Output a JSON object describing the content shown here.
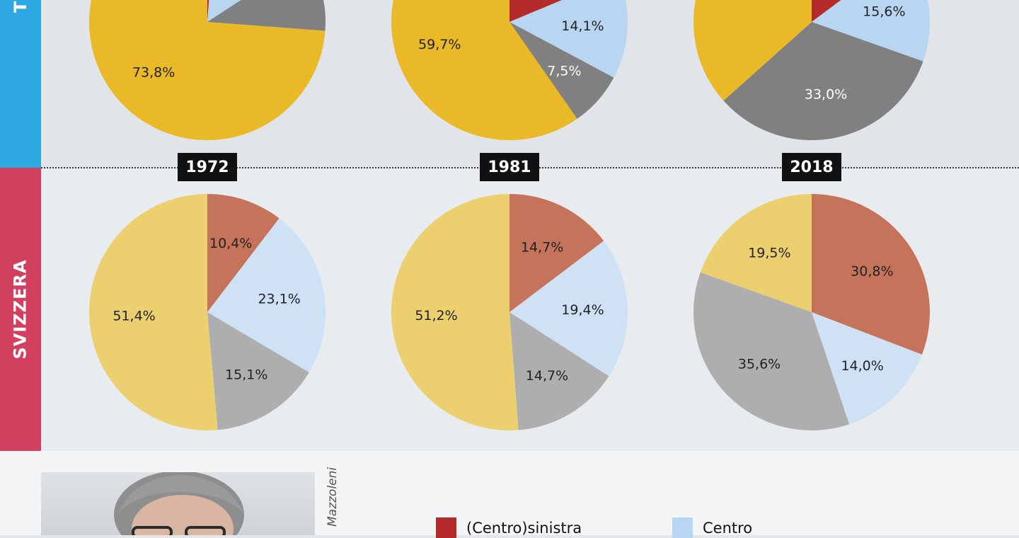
{
  "sections": {
    "ticino": "TICINO",
    "svizzera": "SVIZZERA"
  },
  "years": [
    "1972",
    "1981",
    "2018"
  ],
  "legend": {
    "items": [
      {
        "label": "(Centro)sinistra",
        "color": "#b52a2a"
      },
      {
        "label": "Centro",
        "color": "#b8d6f2"
      }
    ]
  },
  "photo_credit": "Mazzoleni",
  "colors": {
    "ticino": {
      "left": "#b52a2a",
      "center": "#b8d6f2",
      "right": "#808080",
      "other": "#e9b928"
    },
    "svizzera": {
      "left": "#c5735a",
      "center": "#cfe1f4",
      "right": "#aeaeae",
      "other": "#ecd070"
    }
  },
  "chart_data": [
    {
      "type": "pie",
      "region": "Ticino",
      "year": "1972",
      "slices": [
        {
          "key": "left",
          "value": 1.2,
          "label": ""
        },
        {
          "key": "center",
          "value": 14.6,
          "label": ""
        },
        {
          "key": "right",
          "value": 10.4,
          "label": ""
        },
        {
          "key": "other",
          "value": 73.8,
          "label": "73,8%"
        }
      ]
    },
    {
      "type": "pie",
      "region": "Ticino",
      "year": "1981",
      "slices": [
        {
          "key": "left",
          "value": 18.7,
          "label": ""
        },
        {
          "key": "center",
          "value": 14.1,
          "label": "14,1%"
        },
        {
          "key": "right",
          "value": 7.5,
          "label": "7,5%"
        },
        {
          "key": "other",
          "value": 59.7,
          "label": "59,7%"
        }
      ]
    },
    {
      "type": "pie",
      "region": "Ticino",
      "year": "2018",
      "slices": [
        {
          "key": "left",
          "value": 14.8,
          "label": ""
        },
        {
          "key": "center",
          "value": 15.6,
          "label": "15,6%"
        },
        {
          "key": "right",
          "value": 33.0,
          "label": "33,0%"
        },
        {
          "key": "other",
          "value": 36.6,
          "label": ""
        }
      ]
    },
    {
      "type": "pie",
      "region": "Svizzera",
      "year": "1972",
      "slices": [
        {
          "key": "left",
          "value": 10.4,
          "label": "10,4%"
        },
        {
          "key": "center",
          "value": 23.1,
          "label": "23,1%"
        },
        {
          "key": "right",
          "value": 15.1,
          "label": "15,1%"
        },
        {
          "key": "other",
          "value": 51.4,
          "label": "51,4%"
        }
      ]
    },
    {
      "type": "pie",
      "region": "Svizzera",
      "year": "1981",
      "slices": [
        {
          "key": "left",
          "value": 14.7,
          "label": "14,7%"
        },
        {
          "key": "center",
          "value": 19.4,
          "label": "19,4%"
        },
        {
          "key": "right",
          "value": 14.7,
          "label": "14,7%"
        },
        {
          "key": "other",
          "value": 51.2,
          "label": "51,2%"
        }
      ]
    },
    {
      "type": "pie",
      "region": "Svizzera",
      "year": "2018",
      "slices": [
        {
          "key": "left",
          "value": 30.8,
          "label": "30,8%"
        },
        {
          "key": "center",
          "value": 14.0,
          "label": "14,0%"
        },
        {
          "key": "right",
          "value": 35.6,
          "label": "35,6%"
        },
        {
          "key": "other",
          "value": 19.5,
          "label": "19,5%"
        }
      ]
    }
  ]
}
